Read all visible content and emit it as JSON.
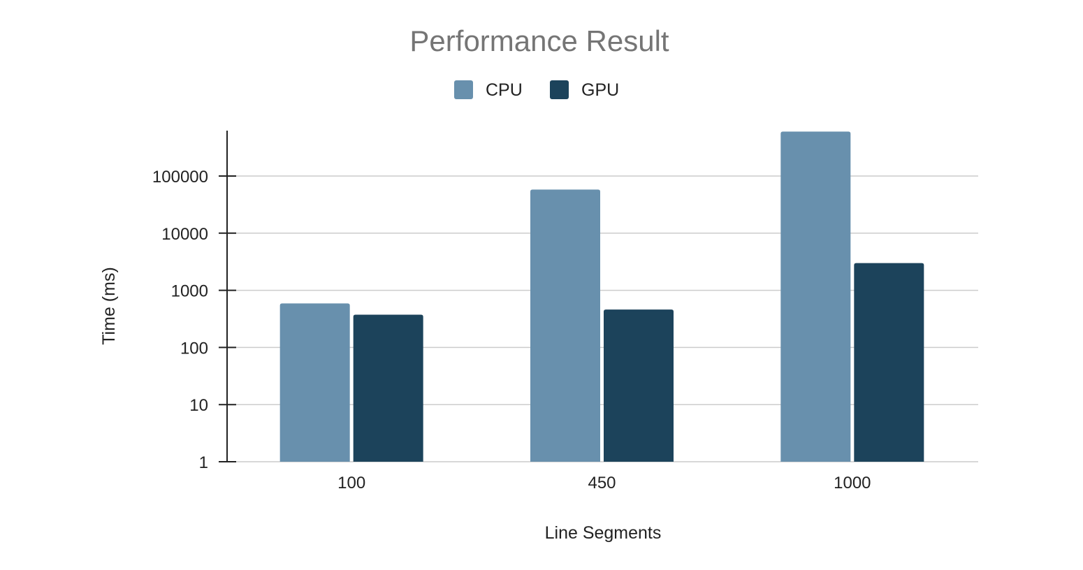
{
  "chart_data": {
    "type": "bar",
    "title": "Performance Result",
    "xlabel": "Line Segments",
    "ylabel": "Time (ms)",
    "yscale": "log",
    "ylim": [
      1,
      600000
    ],
    "yticks": [
      "1",
      "10",
      "100",
      "1000",
      "10000",
      "100000"
    ],
    "categories": [
      "100",
      "450",
      "1000"
    ],
    "series": [
      {
        "name": "CPU",
        "color": "#6890ad",
        "values": [
          590,
          58000,
          600000
        ]
      },
      {
        "name": "GPU",
        "color": "#1c435b",
        "values": [
          375,
          460,
          3000
        ]
      }
    ],
    "grid": true,
    "legend": "top-center"
  }
}
